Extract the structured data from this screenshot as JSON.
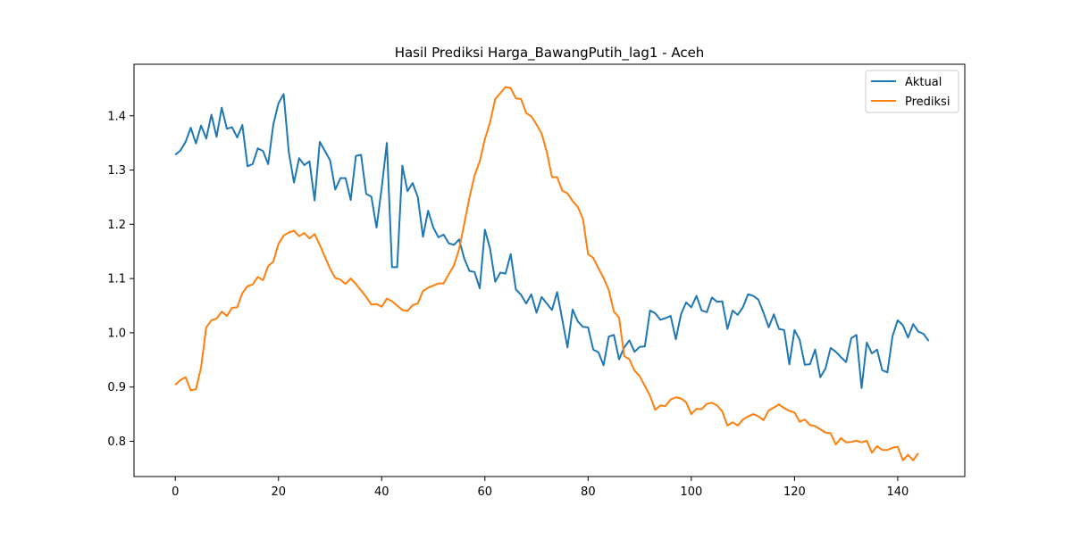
{
  "chart_data": {
    "type": "line",
    "title": "Hasil Prediksi Harga_BawangPutih_lag1 - Aceh",
    "xlabel": "",
    "ylabel": "",
    "xlim": [
      -8,
      153
    ],
    "ylim": [
      0.735,
      1.495
    ],
    "xticks": [
      0,
      20,
      40,
      60,
      80,
      100,
      120,
      140
    ],
    "yticks": [
      0.8,
      0.9,
      1.0,
      1.1,
      1.2,
      1.3,
      1.4
    ],
    "xtick_labels": [
      "0",
      "20",
      "40",
      "60",
      "80",
      "100",
      "120",
      "140"
    ],
    "ytick_labels": [
      "0.8",
      "0.9",
      "1.0",
      "1.1",
      "1.2",
      "1.3",
      "1.4"
    ],
    "grid": false,
    "legend_position": "upper right",
    "series": [
      {
        "name": "Aktual",
        "color": "#1f77b4",
        "values": [
          1.328,
          1.336,
          1.352,
          1.378,
          1.349,
          1.382,
          1.358,
          1.402,
          1.361,
          1.415,
          1.376,
          1.379,
          1.36,
          1.383,
          1.307,
          1.311,
          1.34,
          1.335,
          1.311,
          1.384,
          1.423,
          1.44,
          1.333,
          1.277,
          1.322,
          1.309,
          1.316,
          1.244,
          1.352,
          1.335,
          1.318,
          1.264,
          1.285,
          1.285,
          1.245,
          1.326,
          1.328,
          1.256,
          1.251,
          1.194,
          1.267,
          1.35,
          1.121,
          1.121,
          1.308,
          1.261,
          1.276,
          1.25,
          1.177,
          1.225,
          1.194,
          1.176,
          1.181,
          1.165,
          1.162,
          1.172,
          1.137,
          1.114,
          1.112,
          1.082,
          1.19,
          1.155,
          1.094,
          1.111,
          1.109,
          1.145,
          1.08,
          1.07,
          1.054,
          1.071,
          1.037,
          1.066,
          1.054,
          1.042,
          1.075,
          1.024,
          0.973,
          1.043,
          1.021,
          1.011,
          1.01,
          0.969,
          0.964,
          0.94,
          0.993,
          0.996,
          0.951,
          0.973,
          0.986,
          0.965,
          0.974,
          0.975,
          1.041,
          1.036,
          1.024,
          1.027,
          1.031,
          0.988,
          1.034,
          1.056,
          1.047,
          1.068,
          1.041,
          1.038,
          1.065,
          1.057,
          1.058,
          1.007,
          1.041,
          1.033,
          1.047,
          1.071,
          1.068,
          1.061,
          1.037,
          1.01,
          1.034,
          1.007,
          1.005,
          0.942,
          1.005,
          0.987,
          0.941,
          0.942,
          0.969,
          0.918,
          0.934,
          0.972,
          0.965,
          0.955,
          0.946,
          0.99,
          0.996,
          0.898,
          0.982,
          0.962,
          0.969,
          0.931,
          0.927,
          0.994,
          1.023,
          1.014,
          0.991,
          1.016,
          1.002,
          0.998,
          0.985
        ]
      },
      {
        "name": "Prediksi",
        "color": "#ff7f0e",
        "values": [
          0.904,
          0.913,
          0.918,
          0.894,
          0.896,
          0.936,
          1.01,
          1.023,
          1.026,
          1.039,
          1.031,
          1.046,
          1.047,
          1.073,
          1.086,
          1.089,
          1.103,
          1.097,
          1.123,
          1.131,
          1.164,
          1.179,
          1.185,
          1.188,
          1.178,
          1.184,
          1.174,
          1.182,
          1.162,
          1.14,
          1.118,
          1.101,
          1.098,
          1.09,
          1.1,
          1.09,
          1.078,
          1.066,
          1.052,
          1.053,
          1.048,
          1.063,
          1.058,
          1.05,
          1.042,
          1.04,
          1.051,
          1.054,
          1.077,
          1.083,
          1.087,
          1.091,
          1.091,
          1.108,
          1.124,
          1.154,
          1.201,
          1.249,
          1.29,
          1.316,
          1.357,
          1.388,
          1.431,
          1.442,
          1.453,
          1.451,
          1.432,
          1.431,
          1.405,
          1.399,
          1.384,
          1.367,
          1.333,
          1.287,
          1.287,
          1.262,
          1.257,
          1.243,
          1.232,
          1.21,
          1.145,
          1.138,
          1.119,
          1.101,
          1.079,
          1.039,
          1.028,
          0.957,
          0.951,
          0.93,
          0.92,
          0.902,
          0.884,
          0.858,
          0.866,
          0.865,
          0.877,
          0.881,
          0.879,
          0.872,
          0.85,
          0.86,
          0.859,
          0.869,
          0.871,
          0.866,
          0.855,
          0.829,
          0.835,
          0.829,
          0.84,
          0.846,
          0.85,
          0.846,
          0.839,
          0.857,
          0.862,
          0.868,
          0.861,
          0.856,
          0.853,
          0.836,
          0.84,
          0.83,
          0.828,
          0.822,
          0.816,
          0.815,
          0.794,
          0.806,
          0.798,
          0.799,
          0.801,
          0.798,
          0.801,
          0.779,
          0.791,
          0.784,
          0.784,
          0.788,
          0.79,
          0.765,
          0.775,
          0.765,
          0.778
        ]
      }
    ]
  }
}
